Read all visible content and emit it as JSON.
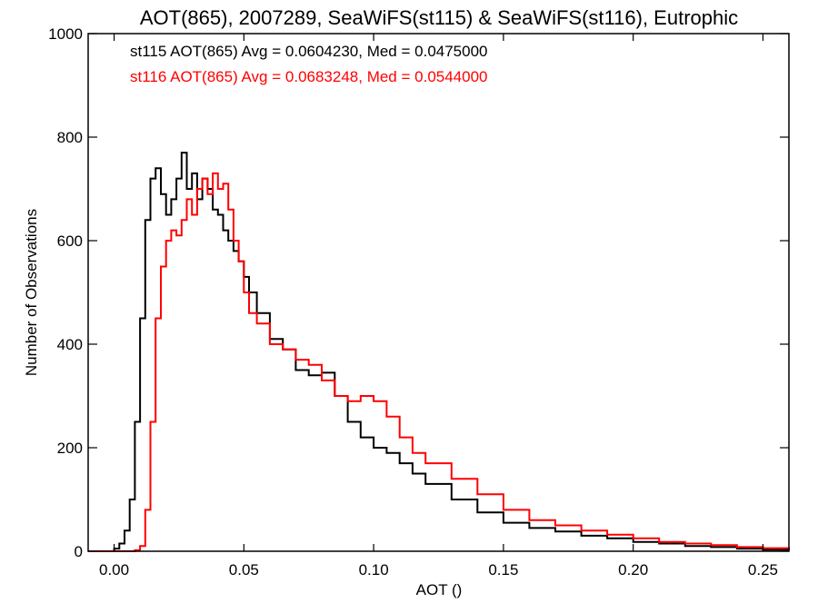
{
  "chart_data": {
    "type": "line",
    "step": true,
    "title": "AOT(865), 2007289, SeaWiFS(st115) & SeaWiFS(st116), Eutrophic",
    "xlabel": "AOT ()",
    "ylabel": "Number of Observations",
    "xlim": [
      -0.01,
      0.26
    ],
    "ylim": [
      0,
      1000
    ],
    "x_ticks": [
      0.0,
      0.05,
      0.1,
      0.15,
      0.2,
      0.25
    ],
    "x_tick_labels": [
      "0.00",
      "0.05",
      "0.10",
      "0.15",
      "0.20",
      "0.25"
    ],
    "y_ticks": [
      0,
      200,
      400,
      600,
      800,
      1000
    ],
    "y_tick_labels": [
      "0",
      "200",
      "400",
      "600",
      "800",
      "1000"
    ],
    "grid": false,
    "annotations": [
      {
        "text": "st115 AOT(865) Avg = 0.0604230, Med = 0.0475000",
        "color": "#000000"
      },
      {
        "text": "st116 AOT(865) Avg = 0.0683248, Med = 0.0544000",
        "color": "#ff0000"
      }
    ],
    "series": [
      {
        "color": "#000000",
        "x": [
          -0.01,
          0.0,
          0.002,
          0.004,
          0.006,
          0.008,
          0.01,
          0.012,
          0.014,
          0.016,
          0.018,
          0.02,
          0.022,
          0.024,
          0.026,
          0.028,
          0.03,
          0.032,
          0.034,
          0.036,
          0.038,
          0.04,
          0.042,
          0.044,
          0.046,
          0.048,
          0.05,
          0.052,
          0.055,
          0.06,
          0.065,
          0.07,
          0.075,
          0.08,
          0.085,
          0.09,
          0.095,
          0.1,
          0.105,
          0.11,
          0.115,
          0.12,
          0.13,
          0.14,
          0.15,
          0.16,
          0.17,
          0.18,
          0.19,
          0.2,
          0.21,
          0.22,
          0.23,
          0.24,
          0.25,
          0.26
        ],
        "y": [
          0,
          5,
          15,
          40,
          100,
          250,
          450,
          640,
          720,
          740,
          690,
          650,
          680,
          720,
          770,
          700,
          730,
          680,
          720,
          700,
          660,
          650,
          620,
          600,
          580,
          560,
          530,
          500,
          460,
          410,
          390,
          350,
          340,
          345,
          300,
          250,
          220,
          200,
          190,
          170,
          150,
          130,
          100,
          75,
          55,
          45,
          38,
          30,
          25,
          18,
          15,
          10,
          8,
          5,
          3,
          2
        ]
      },
      {
        "color": "#ff0000",
        "x": [
          -0.01,
          0.0,
          0.004,
          0.008,
          0.01,
          0.012,
          0.014,
          0.016,
          0.018,
          0.02,
          0.022,
          0.024,
          0.026,
          0.028,
          0.03,
          0.032,
          0.034,
          0.036,
          0.038,
          0.04,
          0.042,
          0.044,
          0.046,
          0.048,
          0.05,
          0.052,
          0.055,
          0.06,
          0.065,
          0.07,
          0.075,
          0.08,
          0.085,
          0.09,
          0.095,
          0.1,
          0.105,
          0.11,
          0.115,
          0.12,
          0.13,
          0.14,
          0.15,
          0.16,
          0.17,
          0.18,
          0.19,
          0.2,
          0.21,
          0.22,
          0.23,
          0.24,
          0.25,
          0.26
        ],
        "y": [
          0,
          0,
          0,
          2,
          10,
          80,
          250,
          450,
          550,
          600,
          620,
          610,
          640,
          680,
          650,
          700,
          720,
          690,
          730,
          700,
          710,
          660,
          600,
          560,
          500,
          460,
          440,
          400,
          390,
          370,
          360,
          330,
          300,
          290,
          300,
          290,
          260,
          220,
          190,
          170,
          140,
          110,
          80,
          60,
          50,
          40,
          32,
          25,
          18,
          15,
          12,
          8,
          6,
          4
        ]
      }
    ]
  }
}
